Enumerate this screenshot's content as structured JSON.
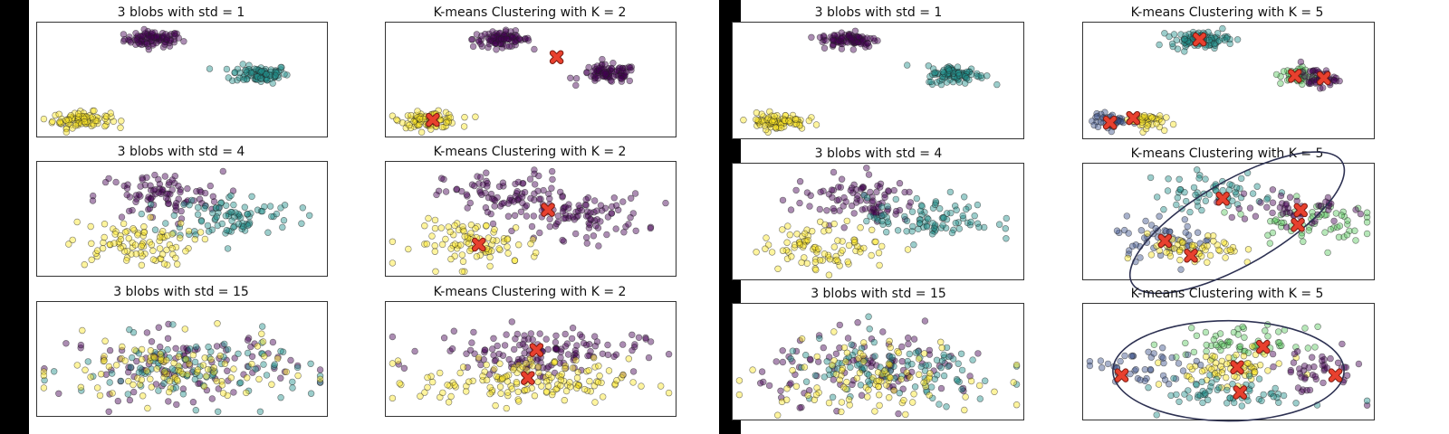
{
  "colors": {
    "purple": "#440154",
    "blue": "#3b528b",
    "teal": "#21918c",
    "green": "#5ec962",
    "yellow": "#fde725",
    "centroid": "#e8402e",
    "ellipse": "#2d3152"
  },
  "chart_data": [
    {
      "id": "p11",
      "type": "scatter",
      "title": "3 blobs with std = 1",
      "xlim": [
        0,
        100
      ],
      "ylim": [
        0,
        100
      ],
      "grid": false,
      "std": 1,
      "clusters": [
        {
          "x": 40,
          "y": 86,
          "sx": 5,
          "sy": 3.5,
          "n": 90,
          "color": "purple"
        },
        {
          "x": 77,
          "y": 55,
          "sx": 5,
          "sy": 4,
          "n": 90,
          "color": "teal"
        },
        {
          "x": 15,
          "y": 14,
          "sx": 5,
          "sy": 3.5,
          "n": 90,
          "color": "yellow"
        }
      ],
      "centroids": [],
      "ellipse": null
    },
    {
      "id": "p12",
      "type": "scatter",
      "title": "K-means Clustering with K = 2",
      "xlim": [
        0,
        100
      ],
      "ylim": [
        0,
        100
      ],
      "grid": false,
      "std": 1,
      "clusters": [
        {
          "x": 40,
          "y": 86,
          "sx": 5,
          "sy": 3.5,
          "n": 90,
          "color": "purple"
        },
        {
          "x": 77,
          "y": 55,
          "sx": 5,
          "sy": 4,
          "n": 90,
          "color": "purple"
        },
        {
          "x": 15,
          "y": 14,
          "sx": 5,
          "sy": 3.5,
          "n": 90,
          "color": "yellow"
        }
      ],
      "centroids": [
        {
          "x": 59,
          "y": 70
        },
        {
          "x": 16,
          "y": 14
        }
      ],
      "ellipse": null
    },
    {
      "id": "p21",
      "type": "scatter",
      "title": "3 blobs with std = 4",
      "xlim": [
        0,
        100
      ],
      "ylim": [
        0,
        100
      ],
      "grid": false,
      "std": 4,
      "clusters": [
        {
          "x": 42,
          "y": 70,
          "sx": 11,
          "sy": 11,
          "n": 90,
          "color": "purple"
        },
        {
          "x": 68,
          "y": 52,
          "sx": 11,
          "sy": 10,
          "n": 90,
          "color": "teal"
        },
        {
          "x": 32,
          "y": 28,
          "sx": 11,
          "sy": 10,
          "n": 90,
          "color": "yellow"
        }
      ],
      "centroids": [],
      "ellipse": null
    },
    {
      "id": "p22",
      "type": "scatter",
      "title": "K-means Clustering with K = 2",
      "xlim": [
        0,
        100
      ],
      "ylim": [
        0,
        100
      ],
      "grid": false,
      "std": 4,
      "clusters": [
        {
          "x": 42,
          "y": 70,
          "sx": 11,
          "sy": 11,
          "n": 90,
          "color": "purple"
        },
        {
          "x": 68,
          "y": 52,
          "sx": 11,
          "sy": 10,
          "n": 90,
          "color": "purple"
        },
        {
          "x": 32,
          "y": 28,
          "sx": 11,
          "sy": 10,
          "n": 90,
          "color": "yellow"
        }
      ],
      "centroids": [
        {
          "x": 56,
          "y": 58
        },
        {
          "x": 32,
          "y": 27
        }
      ],
      "ellipse": null
    },
    {
      "id": "p31",
      "type": "scatter",
      "title": "3 blobs with std = 15",
      "xlim": [
        0,
        100
      ],
      "ylim": [
        0,
        100
      ],
      "grid": false,
      "std": 15,
      "clusters": [
        {
          "x": 50,
          "y": 45,
          "sx": 20,
          "sy": 15,
          "n": 100,
          "color": "purple"
        },
        {
          "x": 55,
          "y": 40,
          "sx": 20,
          "sy": 15,
          "n": 100,
          "color": "teal"
        },
        {
          "x": 45,
          "y": 38,
          "sx": 20,
          "sy": 15,
          "n": 100,
          "color": "yellow"
        }
      ],
      "centroids": [],
      "ellipse": null
    },
    {
      "id": "p32",
      "type": "scatter",
      "title": "K-means Clustering with K = 2",
      "xlim": [
        0,
        100
      ],
      "ylim": [
        0,
        100
      ],
      "grid": false,
      "std": 15,
      "clusters": [
        {
          "x": 52,
          "y": 57,
          "sx": 18,
          "sy": 10,
          "n": 140,
          "color": "purple"
        },
        {
          "x": 48,
          "y": 30,
          "sx": 18,
          "sy": 10,
          "n": 150,
          "color": "yellow"
        }
      ],
      "centroids": [
        {
          "x": 52,
          "y": 58
        },
        {
          "x": 49,
          "y": 33
        }
      ],
      "ellipse": null
    },
    {
      "id": "q11",
      "type": "scatter",
      "title": "3 blobs with std = 1",
      "xlim": [
        0,
        100
      ],
      "ylim": [
        0,
        100
      ],
      "grid": false,
      "std": 1,
      "clusters": [
        {
          "x": 40,
          "y": 86,
          "sx": 5,
          "sy": 3.5,
          "n": 90,
          "color": "purple"
        },
        {
          "x": 77,
          "y": 55,
          "sx": 5,
          "sy": 4,
          "n": 90,
          "color": "teal"
        },
        {
          "x": 15,
          "y": 14,
          "sx": 5,
          "sy": 3.5,
          "n": 90,
          "color": "yellow"
        }
      ],
      "centroids": [],
      "ellipse": null
    },
    {
      "id": "q12",
      "type": "scatter",
      "title": "K-means Clustering with K = 5",
      "xlim": [
        0,
        100
      ],
      "ylim": [
        0,
        100
      ],
      "grid": false,
      "std": 1,
      "clusters": [
        {
          "x": 40,
          "y": 86,
          "sx": 5,
          "sy": 3.5,
          "n": 90,
          "color": "teal"
        },
        {
          "x": 74,
          "y": 54,
          "sx": 3,
          "sy": 4,
          "n": 45,
          "color": "green"
        },
        {
          "x": 81,
          "y": 52,
          "sx": 3,
          "sy": 4,
          "n": 45,
          "color": "purple"
        },
        {
          "x": 9,
          "y": 14,
          "sx": 3,
          "sy": 3.5,
          "n": 45,
          "color": "blue"
        },
        {
          "x": 21,
          "y": 15,
          "sx": 3,
          "sy": 3.5,
          "n": 45,
          "color": "yellow"
        }
      ],
      "centroids": [
        {
          "x": 40,
          "y": 86
        },
        {
          "x": 73,
          "y": 54
        },
        {
          "x": 83,
          "y": 52
        },
        {
          "x": 17,
          "y": 17
        },
        {
          "x": 9,
          "y": 13
        }
      ],
      "ellipse": null
    },
    {
      "id": "q21",
      "type": "scatter",
      "title": "3 blobs with std = 4",
      "xlim": [
        0,
        100
      ],
      "ylim": [
        0,
        100
      ],
      "grid": false,
      "std": 4,
      "clusters": [
        {
          "x": 42,
          "y": 70,
          "sx": 11,
          "sy": 11,
          "n": 90,
          "color": "purple"
        },
        {
          "x": 68,
          "y": 52,
          "sx": 11,
          "sy": 10,
          "n": 90,
          "color": "teal"
        },
        {
          "x": 32,
          "y": 28,
          "sx": 11,
          "sy": 10,
          "n": 90,
          "color": "yellow"
        }
      ],
      "centroids": [],
      "ellipse": null
    },
    {
      "id": "q22",
      "type": "scatter",
      "title": "K-means Clustering with K = 5",
      "xlim": [
        0,
        100
      ],
      "ylim": [
        0,
        100
      ],
      "grid": false,
      "std": 4,
      "clusters": [
        {
          "x": 45,
          "y": 76,
          "sx": 11,
          "sy": 9,
          "n": 60,
          "color": "teal"
        },
        {
          "x": 78,
          "y": 50,
          "sx": 10,
          "sy": 9,
          "n": 60,
          "color": "green"
        },
        {
          "x": 70,
          "y": 62,
          "sx": 10,
          "sy": 9,
          "n": 45,
          "color": "purple"
        },
        {
          "x": 28,
          "y": 36,
          "sx": 9,
          "sy": 9,
          "n": 50,
          "color": "blue"
        },
        {
          "x": 38,
          "y": 24,
          "sx": 8,
          "sy": 7,
          "n": 55,
          "color": "yellow"
        }
      ],
      "centroids": [
        {
          "x": 48,
          "y": 70
        },
        {
          "x": 74,
          "y": 47
        },
        {
          "x": 75,
          "y": 60
        },
        {
          "x": 28,
          "y": 33
        },
        {
          "x": 37,
          "y": 20
        }
      ],
      "ellipse": {
        "cx": 53,
        "cy": 49,
        "rx": 42,
        "ry": 37,
        "rotate": -30
      }
    },
    {
      "id": "q31",
      "type": "scatter",
      "title": "3 blobs with std = 15",
      "xlim": [
        0,
        100
      ],
      "ylim": [
        0,
        100
      ],
      "grid": false,
      "std": 15,
      "clusters": [
        {
          "x": 50,
          "y": 45,
          "sx": 20,
          "sy": 15,
          "n": 100,
          "color": "purple"
        },
        {
          "x": 55,
          "y": 40,
          "sx": 20,
          "sy": 15,
          "n": 100,
          "color": "teal"
        },
        {
          "x": 45,
          "y": 38,
          "sx": 20,
          "sy": 15,
          "n": 100,
          "color": "yellow"
        }
      ],
      "centroids": [],
      "ellipse": null
    },
    {
      "id": "q32",
      "type": "scatter",
      "title": "K-means Clustering with K = 5",
      "xlim": [
        0,
        100
      ],
      "ylim": [
        0,
        100
      ],
      "grid": false,
      "std": 15,
      "clusters": [
        {
          "x": 55,
          "y": 66,
          "sx": 11,
          "sy": 7,
          "n": 60,
          "color": "green"
        },
        {
          "x": 50,
          "y": 44,
          "sx": 10,
          "sy": 7,
          "n": 70,
          "color": "yellow"
        },
        {
          "x": 20,
          "y": 42,
          "sx": 9,
          "sy": 10,
          "n": 45,
          "color": "blue"
        },
        {
          "x": 80,
          "y": 42,
          "sx": 9,
          "sy": 10,
          "n": 45,
          "color": "purple"
        },
        {
          "x": 52,
          "y": 22,
          "sx": 12,
          "sy": 7,
          "n": 60,
          "color": "teal"
        }
      ],
      "centroids": [
        {
          "x": 62,
          "y": 63
        },
        {
          "x": 53,
          "y": 45
        },
        {
          "x": 13,
          "y": 38
        },
        {
          "x": 87,
          "y": 38
        },
        {
          "x": 54,
          "y": 23
        }
      ],
      "ellipse": {
        "cx": 50,
        "cy": 42,
        "rx": 40,
        "ry": 44,
        "rotate": 0
      }
    }
  ]
}
